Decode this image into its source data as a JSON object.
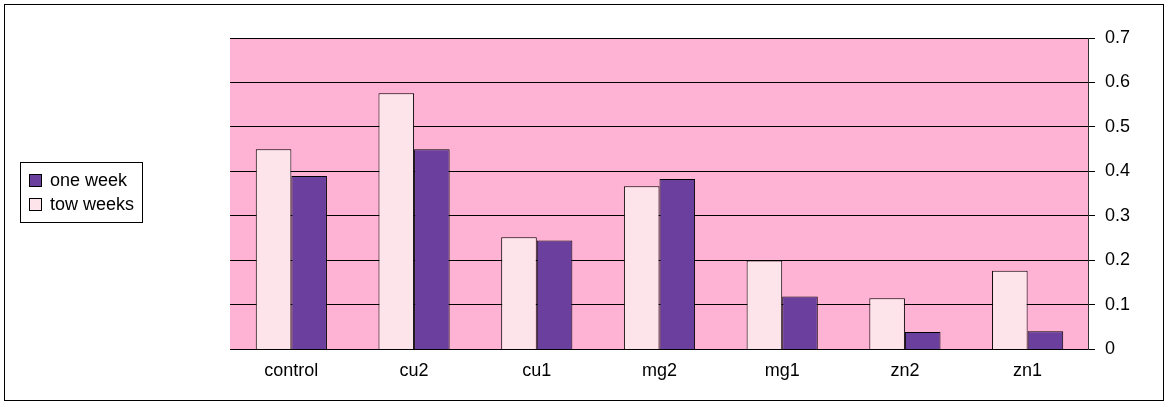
{
  "chart_data": {
    "type": "bar",
    "categories": [
      "control",
      "cu2",
      "cu1",
      "mg2",
      "mg1",
      "zn2",
      "zn1"
    ],
    "series": [
      {
        "name": "tow weeks",
        "color": "#fde4ea",
        "values": [
          0.45,
          0.576,
          0.252,
          0.367,
          0.2,
          0.115,
          0.177
        ]
      },
      {
        "name": "one week",
        "color": "#6a3f9e",
        "values": [
          0.39,
          0.45,
          0.245,
          0.383,
          0.119,
          0.039,
          0.041
        ]
      }
    ],
    "ylim": [
      0,
      0.7
    ],
    "yticks": [
      0,
      0.1,
      0.2,
      0.3,
      0.4,
      0.5,
      0.6,
      0.7
    ],
    "grid": "y",
    "legend": "left"
  }
}
